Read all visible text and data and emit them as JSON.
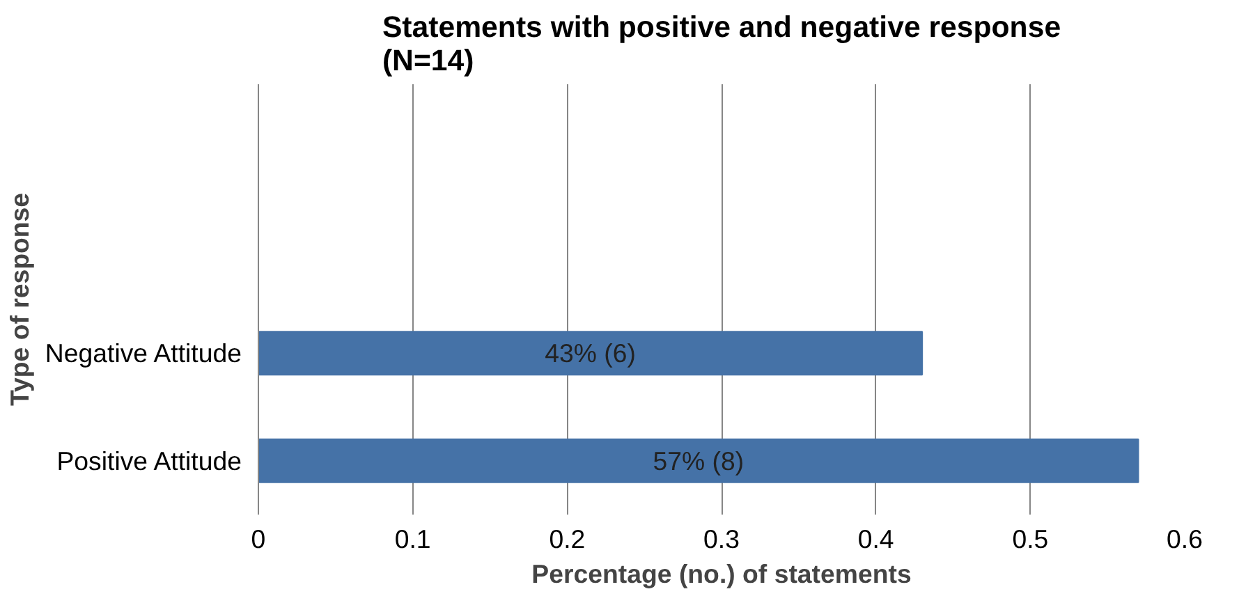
{
  "chart_data": {
    "type": "bar",
    "orientation": "horizontal",
    "title": "Statements with positive and negative response\n(N=14)",
    "xlabel": "Percentage (no.) of statements",
    "ylabel": "Type of response",
    "categories": [
      null,
      null,
      "Negative Attitude",
      "Positive Attitude"
    ],
    "values": [
      null,
      null,
      0.43,
      0.57
    ],
    "value_labels": [
      null,
      null,
      "43% (6)",
      "57% (8)"
    ],
    "color": "#4572a7",
    "xlim": [
      0,
      0.6
    ],
    "xticks": [
      0,
      0.1,
      0.2,
      0.3,
      0.4,
      0.5,
      0.6
    ],
    "grid": "x"
  }
}
